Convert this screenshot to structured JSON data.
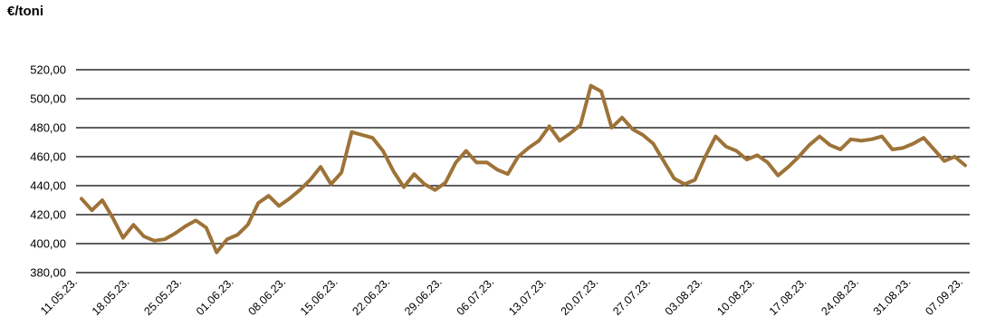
{
  "chart_data": {
    "type": "line",
    "ylabel": "€/toni",
    "ylim": [
      380,
      520
    ],
    "yticks": [
      "380,00",
      "400,00",
      "420,00",
      "440,00",
      "460,00",
      "480,00",
      "500,00",
      "520,00"
    ],
    "xticks": [
      "11.05.23.",
      "18.05.23.",
      "25.05.23.",
      "01.06.23.",
      "08.06.23.",
      "15.06.23.",
      "22.06.23.",
      "29.06.23.",
      "06.07.23.",
      "13.07.23.",
      "20.07.23.",
      "27.07.23.",
      "03.08.23.",
      "10.08.23.",
      "17.08.23.",
      "24.08.23.",
      "31.08.23.",
      "07.09.23."
    ],
    "grid": true,
    "line_color": "#9E7338",
    "series": [
      {
        "values": [
          431,
          423,
          430,
          418,
          404,
          413,
          405,
          402,
          403,
          407,
          412,
          416,
          411,
          394,
          403,
          406,
          413,
          428,
          433,
          426,
          431,
          437,
          444,
          453,
          441,
          449,
          477,
          475,
          473,
          464,
          450,
          439,
          448,
          441,
          437,
          442,
          456,
          464,
          456,
          456,
          451,
          448,
          460,
          466,
          471,
          481,
          471,
          476,
          482,
          509,
          505,
          480,
          487,
          479,
          475,
          469,
          457,
          445,
          441,
          444,
          460,
          474,
          467,
          464,
          458,
          461,
          456,
          447,
          453,
          460,
          468,
          474,
          468,
          465,
          472,
          471,
          472,
          474,
          465,
          466,
          469,
          473,
          465,
          457,
          460,
          454
        ]
      }
    ]
  }
}
